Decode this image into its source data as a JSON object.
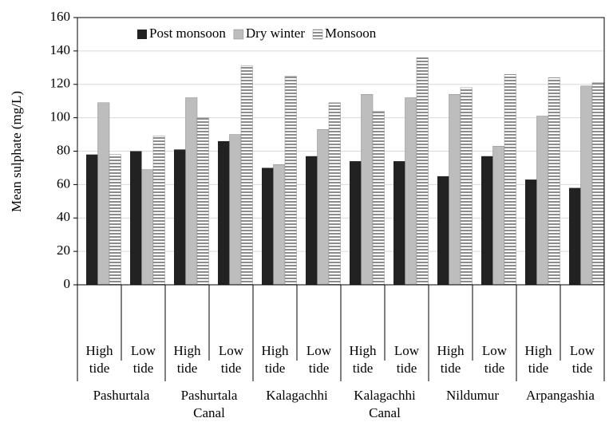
{
  "chart_data": {
    "type": "bar",
    "y_label": "Mean sulphate (mg/L)",
    "categories": [
      "High tide",
      "Low tide",
      "High tide",
      "Low tide",
      "High tide",
      "Low tide",
      "High tide",
      "Low tide",
      "High tide",
      "Low tide",
      "High tide",
      "Low tide"
    ],
    "groups": [
      "Pashurtala",
      "Pashurtala Canal",
      "Kalagachhi",
      "Kalagachhi Canal",
      "Nildumur",
      "Arpangashia"
    ],
    "series": [
      {
        "name": "Post monsoon",
        "color": "#222222",
        "values": [
          78,
          80,
          81,
          86,
          70,
          77,
          74,
          74,
          65,
          77,
          63,
          58
        ]
      },
      {
        "name": "Dry winter",
        "color": "#bdbdbd",
        "values": [
          109,
          69,
          112,
          90,
          72,
          93,
          114,
          112,
          114,
          83,
          101,
          119
        ]
      },
      {
        "name": "Monsoon",
        "color": "#8c8c8c",
        "values": [
          78,
          89,
          100,
          131,
          125,
          109,
          104,
          136,
          118,
          126,
          124,
          121
        ]
      }
    ],
    "ylim": [
      0,
      160
    ],
    "yticks": [
      0,
      20,
      40,
      60,
      80,
      100,
      120,
      140,
      160
    ],
    "grid": true,
    "legend": "top"
  }
}
